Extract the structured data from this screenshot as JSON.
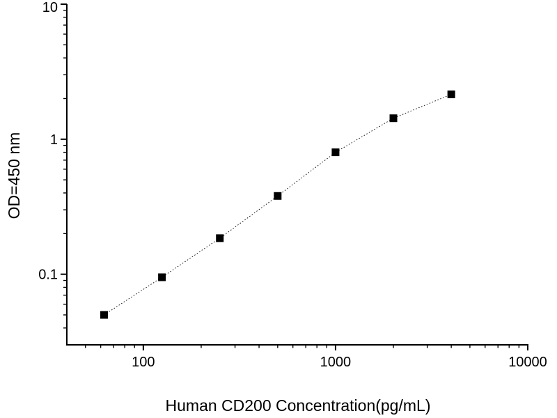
{
  "chart_data": {
    "type": "scatter",
    "title": "",
    "xlabel": "Human CD200 Concentration(pg/mL)",
    "ylabel": "OD=450 nm",
    "x_scale": "log",
    "y_scale": "log",
    "xlim": [
      40,
      10000
    ],
    "ylim": [
      0.03,
      10
    ],
    "grid": false,
    "legend": false,
    "background_color": "#ffffff",
    "axis_color": "#000000",
    "x_ticks": [
      {
        "value": 100,
        "label": "100"
      },
      {
        "value": 1000,
        "label": "1000"
      },
      {
        "value": 10000,
        "label": "10000"
      }
    ],
    "y_ticks": [
      {
        "value": 0.1,
        "label": "0.1"
      },
      {
        "value": 1,
        "label": "1"
      },
      {
        "value": 10,
        "label": "10"
      }
    ],
    "series": [
      {
        "marker": "filled-square",
        "marker_color": "#000000",
        "line_style": "dotted",
        "line_color": "#000000",
        "points": [
          {
            "x": 62.5,
            "y": 0.05
          },
          {
            "x": 125,
            "y": 0.095
          },
          {
            "x": 250,
            "y": 0.185
          },
          {
            "x": 500,
            "y": 0.38
          },
          {
            "x": 1000,
            "y": 0.8
          },
          {
            "x": 2000,
            "y": 1.43
          },
          {
            "x": 4000,
            "y": 2.15
          }
        ]
      }
    ]
  }
}
